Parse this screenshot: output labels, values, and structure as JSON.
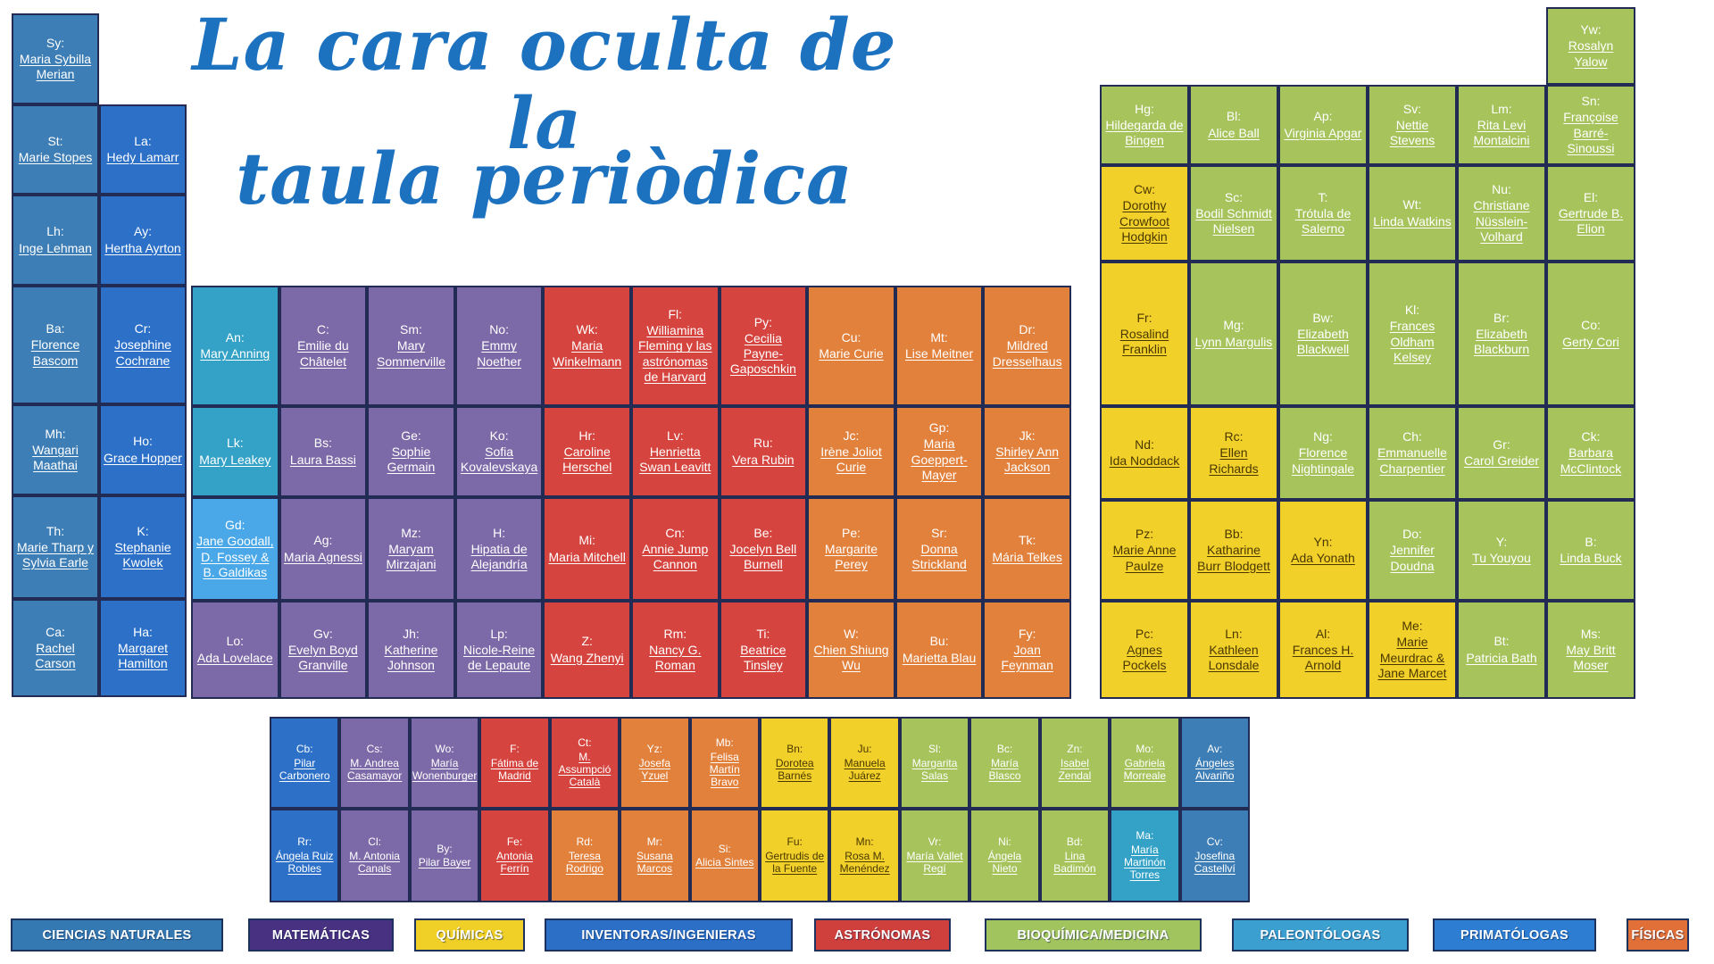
{
  "title": {
    "line1": "La cara oculta de la",
    "line2": "taula periòdica",
    "color": "#1d72c0"
  },
  "categories": {
    "nat": {
      "label": "CIENCIAS NATURALES",
      "cell_color": "#3e7eb6",
      "legend_color": "#3579b2",
      "text_color": "#ffffff"
    },
    "mat": {
      "label": "MATEMÁTICAS",
      "cell_color": "#7c69a7",
      "legend_color": "#483181",
      "text_color": "#ffffff"
    },
    "qui": {
      "label": "QUÍMICAS",
      "cell_color": "#f2d02a",
      "legend_color": "#f0d026",
      "text_color": "#4a3800"
    },
    "inv": {
      "label": "INVENTORAS/INGENIERAS",
      "cell_color": "#2c70c8",
      "legend_color": "#2b6fc7",
      "text_color": "#ffffff"
    },
    "ast": {
      "label": "ASTRÓNOMAS",
      "cell_color": "#d5443e",
      "legend_color": "#cf3f3c",
      "text_color": "#ffffff"
    },
    "bio": {
      "label": "BIOQUÍMICA/MEDICINA",
      "cell_color": "#a6c35c",
      "legend_color": "#a2c45e",
      "text_color": "#ffffff"
    },
    "pal": {
      "label": "PALEONTÓLOGAS",
      "cell_color": "#33a2c6",
      "legend_color": "#3b9fd0",
      "text_color": "#ffffff"
    },
    "pri": {
      "label": "PRIMATÓLOGAS",
      "cell_color": "#4aa8e8",
      "legend_color": "#2d7ed3",
      "text_color": "#ffffff"
    },
    "fis": {
      "label": "FÍSICAS",
      "cell_color": "#e2813c",
      "legend_color": "#e07038",
      "text_color": "#ffffff"
    }
  },
  "legend_order": [
    "nat",
    "mat",
    "qui",
    "inv",
    "ast",
    "bio",
    "pal",
    "pri",
    "fis"
  ],
  "blocks": {
    "left": {
      "cells": [
        {
          "r": 1,
          "c": 1,
          "sym": "Sy:",
          "name": "Maria Sybilla Merian",
          "cat": "nat"
        },
        {
          "r": 2,
          "c": 1,
          "sym": "St:",
          "name": "Marie Stopes",
          "cat": "nat"
        },
        {
          "r": 2,
          "c": 2,
          "sym": "La:",
          "name": "Hedy Lamarr",
          "cat": "inv"
        },
        {
          "r": 3,
          "c": 1,
          "sym": "Lh:",
          "name": "Inge Lehman",
          "cat": "nat"
        },
        {
          "r": 3,
          "c": 2,
          "sym": "Ay:",
          "name": "Hertha Ayrton",
          "cat": "inv"
        },
        {
          "r": 4,
          "c": 1,
          "sym": "Ba:",
          "name": "Florence Bascom",
          "cat": "nat"
        },
        {
          "r": 4,
          "c": 2,
          "sym": "Cr:",
          "name": "Josephine Cochrane",
          "cat": "inv"
        },
        {
          "r": 5,
          "c": 1,
          "sym": "Mh:",
          "name": "Wangari Maathai",
          "cat": "nat"
        },
        {
          "r": 5,
          "c": 2,
          "sym": "Ho:",
          "name": "Grace Hopper",
          "cat": "inv"
        },
        {
          "r": 6,
          "c": 1,
          "sym": "Th:",
          "name": "Marie Tharp y Sylvia Earle",
          "cat": "nat"
        },
        {
          "r": 6,
          "c": 2,
          "sym": "K:",
          "name": "Stephanie Kwolek",
          "cat": "inv"
        },
        {
          "r": 7,
          "c": 1,
          "sym": "Ca:",
          "name": "Rachel Carson",
          "cat": "nat"
        },
        {
          "r": 7,
          "c": 2,
          "sym": "Ha:",
          "name": "Margaret Hamilton",
          "cat": "inv"
        }
      ]
    },
    "middle": {
      "cells": [
        {
          "r": 1,
          "c": 1,
          "sym": "An:",
          "name": "Mary Anning",
          "cat": "pal"
        },
        {
          "r": 1,
          "c": 2,
          "sym": "C:",
          "name": "Emilie du Châtelet",
          "cat": "mat"
        },
        {
          "r": 1,
          "c": 3,
          "sym": "Sm:",
          "name": "Mary Sommerville",
          "cat": "mat"
        },
        {
          "r": 1,
          "c": 4,
          "sym": "No:",
          "name": "Emmy Noether",
          "cat": "mat"
        },
        {
          "r": 1,
          "c": 5,
          "sym": "Wk:",
          "name": "Maria Winkelmann",
          "cat": "ast"
        },
        {
          "r": 1,
          "c": 6,
          "sym": "Fl:",
          "name": "Williamina Fleming y las astrónomas de Harvard",
          "cat": "ast"
        },
        {
          "r": 1,
          "c": 7,
          "sym": "Py:",
          "name": "Cecilia Payne-Gaposchkin",
          "cat": "ast"
        },
        {
          "r": 1,
          "c": 8,
          "sym": "Cu:",
          "name": "Marie Curie",
          "cat": "fis"
        },
        {
          "r": 1,
          "c": 9,
          "sym": "Mt:",
          "name": "Lise Meitner",
          "cat": "fis"
        },
        {
          "r": 1,
          "c": 10,
          "sym": "Dr:",
          "name": "Mildred Dresselhaus",
          "cat": "fis"
        },
        {
          "r": 2,
          "c": 1,
          "sym": "Lk:",
          "name": "Mary Leakey",
          "cat": "pal"
        },
        {
          "r": 2,
          "c": 2,
          "sym": "Bs:",
          "name": "Laura Bassi",
          "cat": "mat"
        },
        {
          "r": 2,
          "c": 3,
          "sym": "Ge:",
          "name": "Sophie Germain",
          "cat": "mat"
        },
        {
          "r": 2,
          "c": 4,
          "sym": "Ko:",
          "name": "Sofia Kovalevskaya",
          "cat": "mat"
        },
        {
          "r": 2,
          "c": 5,
          "sym": "Hr:",
          "name": "Caroline Herschel",
          "cat": "ast"
        },
        {
          "r": 2,
          "c": 6,
          "sym": "Lv:",
          "name": "Henrietta Swan Leavitt",
          "cat": "ast"
        },
        {
          "r": 2,
          "c": 7,
          "sym": "Ru:",
          "name": "Vera Rubin",
          "cat": "ast"
        },
        {
          "r": 2,
          "c": 8,
          "sym": "Jc:",
          "name": "Irène Joliot Curie",
          "cat": "fis"
        },
        {
          "r": 2,
          "c": 9,
          "sym": "Gp:",
          "name": "Maria Goeppert-Mayer",
          "cat": "fis"
        },
        {
          "r": 2,
          "c": 10,
          "sym": "Jk:",
          "name": "Shirley Ann Jackson",
          "cat": "fis"
        },
        {
          "r": 3,
          "c": 1,
          "sym": "Gd:",
          "name": "Jane Goodall, D. Fossey & B. Galdikas",
          "cat": "pri"
        },
        {
          "r": 3,
          "c": 2,
          "sym": "Ag:",
          "name": "Maria Agnessi",
          "cat": "mat"
        },
        {
          "r": 3,
          "c": 3,
          "sym": "Mz:",
          "name": "Maryam Mirzajani",
          "cat": "mat"
        },
        {
          "r": 3,
          "c": 4,
          "sym": "H:",
          "name": "Hipatia de Alejandría",
          "cat": "mat"
        },
        {
          "r": 3,
          "c": 5,
          "sym": "Mi:",
          "name": "Maria Mitchell",
          "cat": "ast"
        },
        {
          "r": 3,
          "c": 6,
          "sym": "Cn:",
          "name": "Annie Jump Cannon",
          "cat": "ast"
        },
        {
          "r": 3,
          "c": 7,
          "sym": "Be:",
          "name": "Jocelyn Bell Burnell",
          "cat": "ast"
        },
        {
          "r": 3,
          "c": 8,
          "sym": "Pe:",
          "name": "Margarite Perey",
          "cat": "fis"
        },
        {
          "r": 3,
          "c": 9,
          "sym": "Sr:",
          "name": "Donna Strickland",
          "cat": "fis"
        },
        {
          "r": 3,
          "c": 10,
          "sym": "Tk:",
          "name": "Mária Telkes",
          "cat": "fis"
        },
        {
          "r": 4,
          "c": 1,
          "sym": "Lo:",
          "name": "Ada Lovelace",
          "cat": "mat"
        },
        {
          "r": 4,
          "c": 2,
          "sym": "Gv:",
          "name": "Evelyn Boyd Granville",
          "cat": "mat"
        },
        {
          "r": 4,
          "c": 3,
          "sym": "Jh:",
          "name": "Katherine Johnson",
          "cat": "mat"
        },
        {
          "r": 4,
          "c": 4,
          "sym": "Lp:",
          "name": "Nicole-Reine de Lepaute",
          "cat": "mat"
        },
        {
          "r": 4,
          "c": 5,
          "sym": "Z:",
          "name": "Wang Zhenyi",
          "cat": "ast"
        },
        {
          "r": 4,
          "c": 6,
          "sym": "Rm:",
          "name": "Nancy G. Roman",
          "cat": "ast"
        },
        {
          "r": 4,
          "c": 7,
          "sym": "Ti:",
          "name": "Beatrice Tinsley",
          "cat": "ast"
        },
        {
          "r": 4,
          "c": 8,
          "sym": "W:",
          "name": "Chien Shiung Wu",
          "cat": "fis"
        },
        {
          "r": 4,
          "c": 9,
          "sym": "Bu:",
          "name": "Marietta Blau",
          "cat": "fis"
        },
        {
          "r": 4,
          "c": 10,
          "sym": "Fy:",
          "name": "Joan Feynman",
          "cat": "fis"
        }
      ]
    },
    "right": {
      "cells": [
        {
          "r": 1,
          "c": 6,
          "sym": "Yw:",
          "name": "Rosalyn Yalow",
          "cat": "bio"
        },
        {
          "r": 2,
          "c": 1,
          "sym": "Hg:",
          "name": "Hildegarda de Bingen",
          "cat": "bio"
        },
        {
          "r": 2,
          "c": 2,
          "sym": "Bl:",
          "name": "Alice Ball",
          "cat": "bio"
        },
        {
          "r": 2,
          "c": 3,
          "sym": "Ap:",
          "name": "Virginia Apgar",
          "cat": "bio"
        },
        {
          "r": 2,
          "c": 4,
          "sym": "Sv:",
          "name": "Nettie Stevens",
          "cat": "bio"
        },
        {
          "r": 2,
          "c": 5,
          "sym": "Lm:",
          "name": "Rita Levi Montalcini",
          "cat": "bio"
        },
        {
          "r": 2,
          "c": 6,
          "sym": "Sn:",
          "name": "Françoise Barré-Sinoussi",
          "cat": "bio"
        },
        {
          "r": 3,
          "c": 1,
          "sym": "Cw:",
          "name": "Dorothy Crowfoot Hodgkin",
          "cat": "qui"
        },
        {
          "r": 3,
          "c": 2,
          "sym": "Sc:",
          "name": "Bodil Schmidt Nielsen",
          "cat": "bio"
        },
        {
          "r": 3,
          "c": 3,
          "sym": "T:",
          "name": "Trótula de Salerno",
          "cat": "bio"
        },
        {
          "r": 3,
          "c": 4,
          "sym": "Wt:",
          "name": "Linda Watkins",
          "cat": "bio"
        },
        {
          "r": 3,
          "c": 5,
          "sym": "Nu:",
          "name": "Christiane Nüsslein-Volhard",
          "cat": "bio"
        },
        {
          "r": 3,
          "c": 6,
          "sym": "El:",
          "name": "Gertrude B. Elion",
          "cat": "bio"
        },
        {
          "r": 4,
          "c": 1,
          "sym": "Fr:",
          "name": "Rosalind Franklin",
          "cat": "qui"
        },
        {
          "r": 4,
          "c": 2,
          "sym": "Mg:",
          "name": "Lynn Margulis",
          "cat": "bio"
        },
        {
          "r": 4,
          "c": 3,
          "sym": "Bw:",
          "name": "Elizabeth Blackwell",
          "cat": "bio"
        },
        {
          "r": 4,
          "c": 4,
          "sym": "Kl:",
          "name": "Frances Oldham Kelsey",
          "cat": "bio"
        },
        {
          "r": 4,
          "c": 5,
          "sym": "Br:",
          "name": "Elizabeth Blackburn",
          "cat": "bio"
        },
        {
          "r": 4,
          "c": 6,
          "sym": "Co:",
          "name": "Gerty Cori",
          "cat": "bio"
        },
        {
          "r": 5,
          "c": 1,
          "sym": "Nd:",
          "name": "Ida Noddack",
          "cat": "qui"
        },
        {
          "r": 5,
          "c": 2,
          "sym": "Rc:",
          "name": "Ellen Richards",
          "cat": "qui"
        },
        {
          "r": 5,
          "c": 3,
          "sym": "Ng:",
          "name": "Florence Nightingale",
          "cat": "bio"
        },
        {
          "r": 5,
          "c": 4,
          "sym": "Ch:",
          "name": "Emmanuelle Charpentier",
          "cat": "bio"
        },
        {
          "r": 5,
          "c": 5,
          "sym": "Gr:",
          "name": "Carol Greider",
          "cat": "bio"
        },
        {
          "r": 5,
          "c": 6,
          "sym": "Ck:",
          "name": "Barbara McClintock",
          "cat": "bio"
        },
        {
          "r": 6,
          "c": 1,
          "sym": "Pz:",
          "name": "Marie Anne Paulze",
          "cat": "qui"
        },
        {
          "r": 6,
          "c": 2,
          "sym": "Bb:",
          "name": "Katharine Burr Blodgett",
          "cat": "qui"
        },
        {
          "r": 6,
          "c": 3,
          "sym": "Yn:",
          "name": "Ada Yonath",
          "cat": "qui"
        },
        {
          "r": 6,
          "c": 4,
          "sym": "Do:",
          "name": "Jennifer Doudna",
          "cat": "bio"
        },
        {
          "r": 6,
          "c": 5,
          "sym": "Y:",
          "name": "Tu Youyou",
          "cat": "bio"
        },
        {
          "r": 6,
          "c": 6,
          "sym": "B:",
          "name": "Linda Buck",
          "cat": "bio"
        },
        {
          "r": 7,
          "c": 1,
          "sym": "Pc:",
          "name": "Agnes Pockels",
          "cat": "qui"
        },
        {
          "r": 7,
          "c": 2,
          "sym": "Ln:",
          "name": "Kathleen Lonsdale",
          "cat": "qui"
        },
        {
          "r": 7,
          "c": 3,
          "sym": "Al:",
          "name": "Frances H. Arnold",
          "cat": "qui"
        },
        {
          "r": 7,
          "c": 4,
          "sym": "Me:",
          "name": "Marie Meurdrac & Jane Marcet",
          "cat": "qui"
        },
        {
          "r": 7,
          "c": 5,
          "sym": "Bt:",
          "name": "Patricia Bath",
          "cat": "bio"
        },
        {
          "r": 7,
          "c": 6,
          "sym": "Ms:",
          "name": "May Britt Moser",
          "cat": "bio"
        }
      ]
    },
    "bottom": {
      "cells": [
        {
          "r": 1,
          "c": 1,
          "sym": "Cb:",
          "name": "Pilar Carbonero",
          "cat": "inv"
        },
        {
          "r": 1,
          "c": 2,
          "sym": "Cs:",
          "name": "M. Andrea Casamayor",
          "cat": "mat"
        },
        {
          "r": 1,
          "c": 3,
          "sym": "Wo:",
          "name": "María Wonenburger",
          "cat": "mat"
        },
        {
          "r": 1,
          "c": 4,
          "sym": "F:",
          "name": "Fátima de Madrid",
          "cat": "ast"
        },
        {
          "r": 1,
          "c": 5,
          "sym": "Ct:",
          "name": "M. Assumpció Català",
          "cat": "ast"
        },
        {
          "r": 1,
          "c": 6,
          "sym": "Yz:",
          "name": "Josefa Yzuel",
          "cat": "fis"
        },
        {
          "r": 1,
          "c": 7,
          "sym": "Mb:",
          "name": "Felisa Martín Bravo",
          "cat": "fis"
        },
        {
          "r": 1,
          "c": 8,
          "sym": "Bn:",
          "name": "Dorotea Barnés",
          "cat": "qui"
        },
        {
          "r": 1,
          "c": 9,
          "sym": "Ju:",
          "name": "Manuela Juárez",
          "cat": "qui"
        },
        {
          "r": 1,
          "c": 10,
          "sym": "Sl:",
          "name": "Margarita Salas",
          "cat": "bio"
        },
        {
          "r": 1,
          "c": 11,
          "sym": "Bc:",
          "name": "María Blasco",
          "cat": "bio"
        },
        {
          "r": 1,
          "c": 12,
          "sym": "Zn:",
          "name": "Isabel Zendal",
          "cat": "bio"
        },
        {
          "r": 1,
          "c": 13,
          "sym": "Mo:",
          "name": "Gabriela Morreale",
          "cat": "bio"
        },
        {
          "r": 1,
          "c": 14,
          "sym": "Av:",
          "name": "Ángeles Alvariño",
          "cat": "nat"
        },
        {
          "r": 2,
          "c": 1,
          "sym": "Rr:",
          "name": "Ángela Ruiz Robles",
          "cat": "inv"
        },
        {
          "r": 2,
          "c": 2,
          "sym": "Cl:",
          "name": "M. Antonia Canals",
          "cat": "mat"
        },
        {
          "r": 2,
          "c": 3,
          "sym": "By:",
          "name": "Pilar Bayer",
          "cat": "mat"
        },
        {
          "r": 2,
          "c": 4,
          "sym": "Fe:",
          "name": "Antonia Ferrín",
          "cat": "ast"
        },
        {
          "r": 2,
          "c": 5,
          "sym": "Rd:",
          "name": "Teresa Rodrigo",
          "cat": "fis"
        },
        {
          "r": 2,
          "c": 6,
          "sym": "Mr:",
          "name": "Susana Marcos",
          "cat": "fis"
        },
        {
          "r": 2,
          "c": 7,
          "sym": "Si:",
          "name": "Alicia Sintes",
          "cat": "fis"
        },
        {
          "r": 2,
          "c": 8,
          "sym": "Fu:",
          "name": "Gertrudis de la Fuente",
          "cat": "qui"
        },
        {
          "r": 2,
          "c": 9,
          "sym": "Mn:",
          "name": "Rosa M. Menéndez",
          "cat": "qui"
        },
        {
          "r": 2,
          "c": 10,
          "sym": "Vr:",
          "name": "María Vallet Regí",
          "cat": "bio"
        },
        {
          "r": 2,
          "c": 11,
          "sym": "Ni:",
          "name": "Ángela Nieto",
          "cat": "bio"
        },
        {
          "r": 2,
          "c": 12,
          "sym": "Bd:",
          "name": "Lina Badimón",
          "cat": "bio"
        },
        {
          "r": 2,
          "c": 13,
          "sym": "Ma:",
          "name": "María Martinón Torres",
          "cat": "pal"
        },
        {
          "r": 2,
          "c": 14,
          "sym": "Cv:",
          "name": "Josefina Castellví",
          "cat": "nat"
        }
      ]
    }
  }
}
